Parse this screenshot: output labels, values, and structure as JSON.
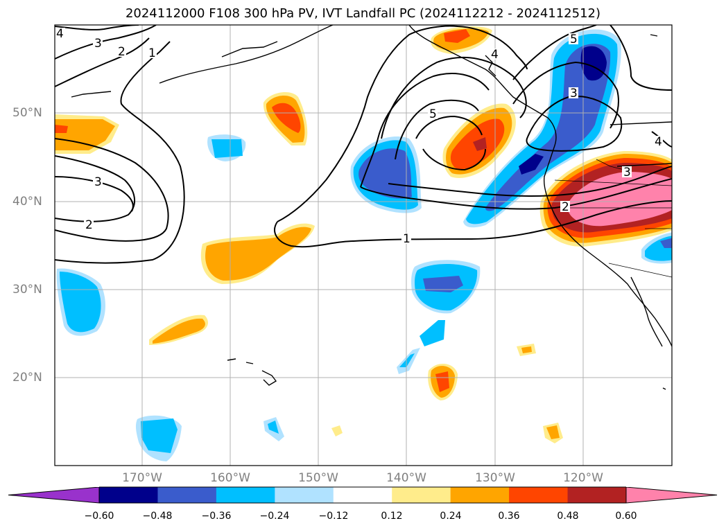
{
  "title": "2024112000 F108 300 hPa PV, IVT Landfall PC (2024112212 - 2024112512)",
  "map": {
    "lon_labels": [
      "170°W",
      "160°W",
      "150°W",
      "140°W",
      "130°W",
      "120°W"
    ],
    "lat_labels": [
      "50°N",
      "40°N",
      "30°N",
      "20°N"
    ],
    "contour_labels": [
      "4",
      "3",
      "2",
      "1",
      "3",
      "2",
      "5",
      "4",
      "5",
      "3",
      "3",
      "2",
      "4",
      "1"
    ]
  },
  "colorbar": {
    "tick_labels": [
      "−0.60",
      "−0.48",
      "−0.36",
      "−0.24",
      "−0.12",
      "0.12",
      "0.24",
      "0.36",
      "0.48",
      "0.60"
    ],
    "colors": [
      "#9932cc",
      "#00008b",
      "#3a5ccc",
      "#00bfff",
      "#b0e2ff",
      "#ffffff",
      "#ffec8b",
      "#ffa500",
      "#ff4500",
      "#b22222",
      "#ff82ab"
    ]
  }
}
